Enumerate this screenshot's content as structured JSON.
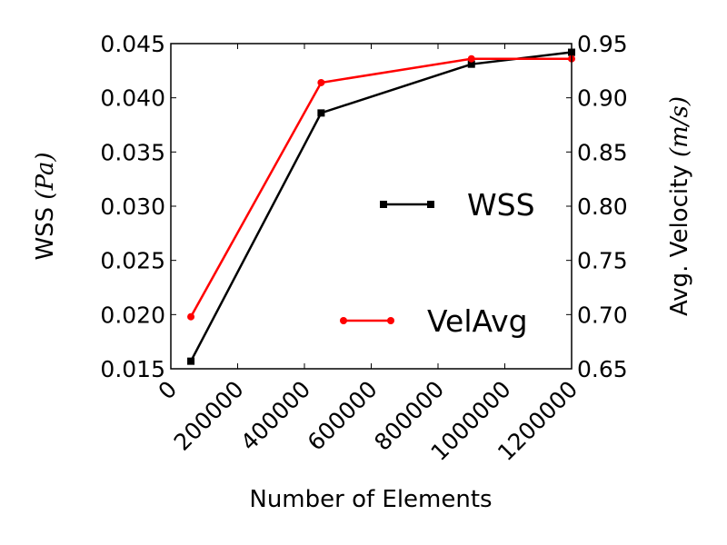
{
  "chart_data": {
    "type": "line",
    "xlabel": "Number of Elements",
    "ylabel_left": {
      "text": "WSS ",
      "math": "(Pa)"
    },
    "ylabel_right": {
      "text": "Avg. Velocity ",
      "math": "(m/s)"
    },
    "xlim": [
      0,
      1200000
    ],
    "ylim_left": [
      0.015,
      0.045
    ],
    "ylim_right": [
      0.65,
      0.95
    ],
    "x_ticks": [
      "0",
      "200000",
      "400000",
      "600000",
      "800000",
      "1000000",
      "1200000"
    ],
    "y_left_ticks": [
      "0.015",
      "0.020",
      "0.025",
      "0.030",
      "0.035",
      "0.040",
      "0.045"
    ],
    "y_right_ticks": [
      "0.65",
      "0.70",
      "0.75",
      "0.80",
      "0.85",
      "0.90",
      "0.95"
    ],
    "grid": false,
    "series": [
      {
        "name": "WSS",
        "axis": "left",
        "color": "#000000",
        "marker": "square",
        "x": [
          60000,
          450000,
          900000,
          1200000
        ],
        "y": [
          0.0157,
          0.0386,
          0.0431,
          0.0442
        ]
      },
      {
        "name": "VelAvg",
        "axis": "right",
        "color": "#ff0000",
        "marker": "circle",
        "x": [
          60000,
          450000,
          900000,
          1200000
        ],
        "y": [
          0.698,
          0.914,
          0.936,
          0.936
        ]
      }
    ]
  }
}
